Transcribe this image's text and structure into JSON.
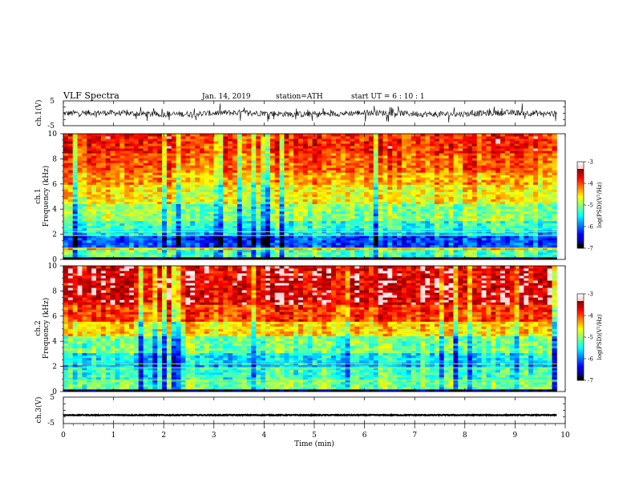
{
  "header": {
    "title": "VLF  Spectra",
    "date": "Jan. 14, 2019",
    "station": "station=ATH",
    "start": "start  UT  =   6  : 10 : 1"
  },
  "chart_data": [
    {
      "type": "line",
      "name": "ch1-waveform",
      "ylabel": "ch.1(V)",
      "ylim": [
        -5,
        5
      ],
      "yticks": [
        "5",
        "-5"
      ],
      "xlim": [
        0,
        10
      ],
      "x_extent": [
        0,
        9.83
      ],
      "level": -0.1,
      "noise_amplitude": 1.2
    },
    {
      "type": "heatmap",
      "name": "ch1-spectrogram",
      "ylabel_line1": "ch.1",
      "ylabel_line2": "Frequency  (kHz)",
      "ylim": [
        0,
        10
      ],
      "yticks": [
        "0",
        "2",
        "4",
        "6",
        "8",
        "10"
      ],
      "xlim": [
        0,
        10
      ],
      "x_extent": [
        0,
        9.83
      ],
      "colorbar": {
        "label": "log(PSD)(V²/Hz)",
        "range": [
          -7,
          -3
        ],
        "ticks": [
          "-3",
          "-4",
          "-5",
          "-6",
          "-7"
        ]
      },
      "bands": [
        {
          "f0": 0,
          "f1": 0.2,
          "psd": -7
        },
        {
          "f0": 0.2,
          "f1": 0.7,
          "psd": -5.2
        },
        {
          "f0": 0.7,
          "f1": 1.0,
          "psd": -4.4
        },
        {
          "f0": 1.0,
          "f1": 2.0,
          "psd": -6.1
        },
        {
          "f0": 2.0,
          "f1": 2.3,
          "psd": -5.6
        },
        {
          "f0": 2.3,
          "f1": 3.0,
          "psd": -5.3
        },
        {
          "f0": 3.0,
          "f1": 4.5,
          "psd": -5.0
        },
        {
          "f0": 4.5,
          "f1": 6.0,
          "psd": -4.6
        },
        {
          "f0": 6.0,
          "f1": 7.0,
          "psd": -4.3
        },
        {
          "f0": 7.0,
          "f1": 8.5,
          "psd": -4.05
        },
        {
          "f0": 8.5,
          "f1": 10.0,
          "psd": -3.85
        }
      ]
    },
    {
      "type": "heatmap",
      "name": "ch2-spectrogram",
      "ylabel_line1": "ch.2",
      "ylabel_line2": "Frequency  (kHz)",
      "ylim": [
        0,
        10
      ],
      "yticks": [
        "0",
        "2",
        "4",
        "6",
        "8",
        "10"
      ],
      "xlim": [
        0,
        10
      ],
      "x_extent": [
        0,
        9.83
      ],
      "colorbar": {
        "label": "log(PSD)(V²/Hz)",
        "range": [
          -7,
          -3
        ],
        "ticks": [
          "-3",
          "-4",
          "-5",
          "-6",
          "-7"
        ]
      },
      "bands": [
        {
          "f0": 0,
          "f1": 0.2,
          "psd": -6.8
        },
        {
          "f0": 0.2,
          "f1": 1.0,
          "psd": -5.1
        },
        {
          "f0": 1.0,
          "f1": 2.0,
          "psd": -5.3
        },
        {
          "f0": 2.0,
          "f1": 2.3,
          "psd": -5.7
        },
        {
          "f0": 2.3,
          "f1": 3.0,
          "psd": -5.5
        },
        {
          "f0": 3.0,
          "f1": 4.5,
          "psd": -5.1
        },
        {
          "f0": 4.5,
          "f1": 5.5,
          "psd": -4.5
        },
        {
          "f0": 5.5,
          "f1": 7.0,
          "psd": -3.95
        },
        {
          "f0": 7.0,
          "f1": 10.0,
          "psd": -3.6
        }
      ]
    },
    {
      "type": "line",
      "name": "ch3-waveform",
      "ylabel": "ch.3(V)",
      "ylim": [
        -5,
        5
      ],
      "yticks": [
        "5",
        "-5"
      ],
      "xlim": [
        0,
        10
      ],
      "x_extent": [
        0,
        9.83
      ],
      "level": -1.8,
      "noise_amplitude": 0.15
    }
  ],
  "xaxis": {
    "label": "Time  (min)",
    "ticks": [
      "0",
      "1",
      "2",
      "3",
      "4",
      "5",
      "6",
      "7",
      "8",
      "9",
      "10"
    ]
  }
}
